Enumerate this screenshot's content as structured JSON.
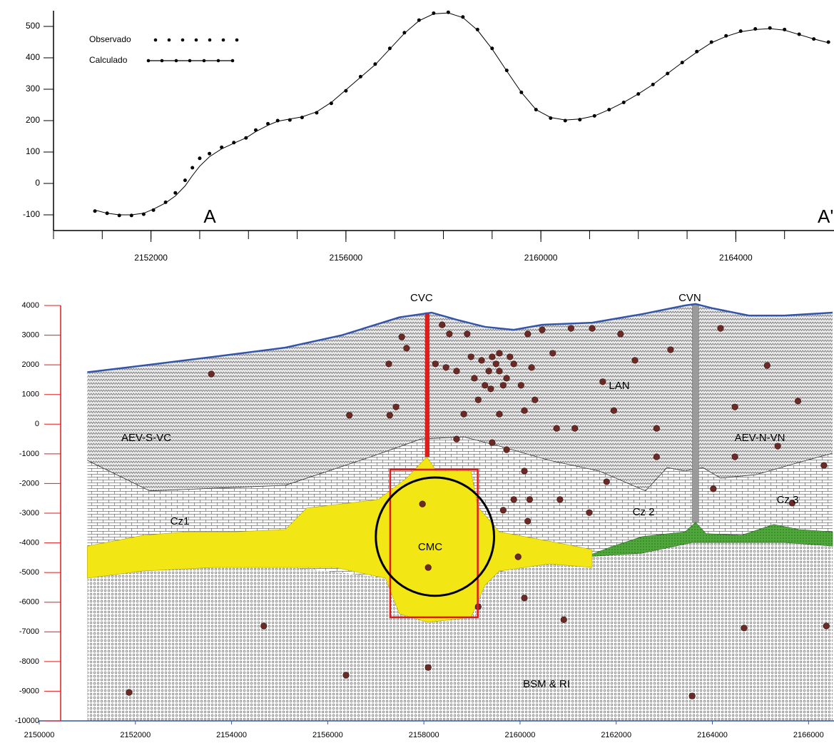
{
  "chart_data": [
    {
      "type": "line",
      "x": [
        2150850,
        2151100,
        2151350,
        2151600,
        2151850,
        2152050,
        2152300,
        2152500,
        2152700,
        2152850,
        2153000,
        2153200,
        2153450,
        2153700,
        2153950,
        2154150,
        2154400,
        2154600,
        2154850,
        2155100,
        2155400,
        2155700,
        2156000,
        2156300,
        2156600,
        2156900,
        2157200,
        2157500,
        2157800,
        2158100,
        2158400,
        2158700,
        2159000,
        2159300,
        2159600,
        2159900,
        2160200,
        2160500,
        2160800,
        2161100,
        2161400,
        2161700,
        2162000,
        2162300,
        2162600,
        2162900,
        2163200,
        2163500,
        2163800,
        2164100,
        2164400,
        2164700,
        2165000,
        2165300,
        2165600,
        2165900
      ],
      "series": [
        {
          "name": "Observado",
          "color": "#000000",
          "style": "dots",
          "values": [
            -88,
            -95,
            -102,
            -102,
            -98,
            -85,
            -60,
            -30,
            10,
            50,
            80,
            95,
            115,
            130,
            145,
            170,
            190,
            200,
            202,
            210,
            225,
            255,
            295,
            340,
            380,
            430,
            480,
            520,
            542,
            545,
            530,
            490,
            430,
            360,
            290,
            235,
            208,
            200,
            203,
            215,
            235,
            258,
            285,
            315,
            350,
            385,
            420,
            450,
            470,
            485,
            492,
            495,
            490,
            475,
            460,
            450
          ]
        },
        {
          "name": "Calculado",
          "color": "#000000",
          "style": "line",
          "values": [
            -85,
            -95,
            -100,
            -100,
            -95,
            -82,
            -62,
            -40,
            -8,
            25,
            55,
            85,
            110,
            128,
            145,
            165,
            185,
            198,
            205,
            212,
            228,
            258,
            298,
            338,
            378,
            428,
            478,
            518,
            540,
            543,
            528,
            488,
            428,
            358,
            290,
            235,
            210,
            202,
            205,
            215,
            235,
            258,
            285,
            315,
            350,
            385,
            418,
            448,
            468,
            483,
            490,
            493,
            488,
            474,
            460,
            448
          ]
        }
      ],
      "xlim": [
        2150000,
        2166000
      ],
      "ylim": [
        -150,
        550
      ],
      "xticks": [
        2152000,
        2156000,
        2160000,
        2164000
      ],
      "xticks_minor": [
        2150000,
        2151000,
        2152000,
        2153000,
        2154000,
        2155000,
        2156000,
        2157000,
        2158000,
        2159000,
        2160000,
        2161000,
        2162000,
        2163000,
        2164000,
        2165000
      ],
      "yticks": [
        -100,
        0,
        100,
        200,
        300,
        400,
        500
      ],
      "annotations": [
        "A",
        "A'"
      ]
    },
    {
      "type": "section",
      "xlim": [
        2150000,
        2166500
      ],
      "ylim": [
        -10000,
        4000
      ],
      "xticks": [
        2150000,
        2152000,
        2154000,
        2156000,
        2158000,
        2160000,
        2162000,
        2164000,
        2166000
      ],
      "yticks": [
        4000,
        3000,
        2000,
        1000,
        0,
        -1000,
        -2000,
        -3000,
        -4000,
        -5000,
        -6000,
        -7000,
        -8000,
        -9000,
        -10000
      ],
      "topography": {
        "color": "#3355aa",
        "x": [
          2151000,
          2151780,
          2153630,
          2155120,
          2156300,
          2157490,
          2158160,
          2158680,
          2159270,
          2159870,
          2160460,
          2161500,
          2162540,
          2163430,
          2163650,
          2164020,
          2164760,
          2165500,
          2166500
        ],
        "y": [
          1750,
          1900,
          2270,
          2580,
          3000,
          3600,
          3760,
          3520,
          3280,
          3180,
          3350,
          3420,
          3710,
          4000,
          4050,
          3900,
          3660,
          3660,
          3760
        ]
      },
      "aev_base": {
        "x": [
          2151000,
          2152300,
          2155120,
          2156900,
          2157940,
          2158830,
          2159570,
          2160610,
          2161650,
          2162610,
          2163060,
          2163430,
          2163800,
          2164170,
          2164910,
          2165800,
          2166500
        ],
        "y": [
          -1220,
          -2250,
          -2060,
          -1100,
          -500,
          -430,
          -740,
          -1220,
          -1580,
          -2250,
          -1460,
          -1580,
          -1460,
          -1820,
          -1700,
          -1290,
          -980
        ]
      },
      "basement_top": {
        "x": [
          2151000,
          2153630,
          2156010,
          2157200,
          2159270,
          2161350,
          2162540,
          2163580,
          2165500,
          2166500
        ],
        "y": [
          -4710,
          -4590,
          -4950,
          -5190,
          -5070,
          -4470,
          -4350,
          -3990,
          -3990,
          -4110
        ]
      },
      "cmc_body": {
        "color": "#f2e614",
        "x": [
          2151000,
          2152150,
          2153040,
          2154080,
          2155120,
          2155560,
          2157050,
          2157640,
          2158060,
          2158260,
          2158980,
          2159120,
          2159570,
          2160760,
          2161500,
          2161500,
          2160610,
          2159570,
          2159270,
          2158980,
          2158090,
          2157490,
          2157200,
          2156160,
          2153630,
          2152150,
          2151000
        ],
        "y": [
          -4110,
          -3750,
          -3630,
          -3630,
          -3550,
          -2830,
          -2540,
          -1820,
          -1100,
          -1580,
          -1580,
          -2780,
          -3630,
          -3990,
          -4230,
          -4830,
          -4710,
          -4950,
          -5430,
          -6510,
          -6680,
          -6390,
          -5190,
          -4830,
          -4830,
          -4950,
          -5190
        ]
      },
      "green_body": {
        "color": "#4fa83a",
        "x": [
          2161350,
          2161940,
          2162540,
          2163430,
          2163650,
          2163870,
          2164610,
          2165280,
          2165800,
          2166500,
          2166500,
          2165500,
          2163580,
          2162540
        ],
        "y": [
          -4470,
          -4110,
          -3790,
          -3630,
          -3310,
          -3690,
          -3740,
          -3380,
          -3550,
          -3630,
          -4110,
          -3990,
          -3990,
          -4350
        ]
      },
      "conduits": [
        {
          "label": "CVC",
          "color": "#e21b1b",
          "x": 2158070,
          "top": 3760,
          "bottom": -1100
        },
        {
          "label": "CVN",
          "color": "#9a9a9a",
          "x": 2163650,
          "top": 4050,
          "bottom": -3300
        }
      ],
      "box": {
        "color": "#e21b1b",
        "x": [
          2157300,
          2159120
        ],
        "y": [
          -6510,
          -1530
        ]
      },
      "circle": {
        "color": "#000000",
        "x": 2158230,
        "y": -3790,
        "radius": 1230
      },
      "earthquakes": {
        "color": "#6b2a25",
        "x": [
          2153580,
          2156450,
          2157290,
          2157540,
          2157640,
          2157270,
          2157420,
          2157970,
          2158090,
          2158090,
          2158680,
          2158380,
          2158530,
          2158240,
          2158460,
          2158680,
          2158900,
          2158980,
          2159050,
          2159130,
          2158830,
          2159270,
          2159420,
          2159570,
          2159720,
          2159870,
          2160020,
          2160160,
          2160240,
          2160310,
          2160090,
          2159570,
          2159420,
          2159720,
          2160090,
          2159870,
          2160160,
          2159650,
          2160200,
          2160460,
          2160680,
          2160760,
          2161060,
          2161140,
          2161500,
          2161720,
          2161950,
          2162090,
          2162390,
          2162840,
          2163130,
          2164170,
          2164470,
          2165140,
          2165780,
          2165360,
          2164470,
          2164020,
          2162840,
          2161800,
          2160830,
          2161440,
          2159130,
          2160090,
          2159960,
          2160910,
          2154670,
          2156380,
          2151870,
          2163580,
          2164660,
          2166370,
          2165660,
          2166320,
          2159200,
          2159350,
          2159500,
          2159650,
          2159790,
          2159570,
          2159390
        ],
        "y": [
          1690,
          300,
          300,
          2940,
          2560,
          2030,
          580,
          -2690,
          -4830,
          -8200,
          -500,
          3350,
          3040,
          2030,
          1910,
          1790,
          3040,
          2270,
          1550,
          820,
          340,
          1310,
          2270,
          1790,
          1550,
          2030,
          1310,
          3040,
          1910,
          820,
          460,
          340,
          -620,
          -860,
          -1580,
          -2540,
          -3270,
          -2900,
          -2540,
          3180,
          2390,
          -140,
          3230,
          -140,
          3230,
          1430,
          460,
          3040,
          2150,
          -140,
          2510,
          3230,
          580,
          1980,
          780,
          -740,
          -1100,
          -2180,
          -1100,
          -1940,
          -2540,
          -2980,
          -6150,
          -5860,
          -4470,
          -6590,
          -6800,
          -8460,
          -9040,
          -9160,
          -6870,
          -6800,
          -2660,
          -1390,
          2150,
          1790,
          2030,
          1310,
          2270,
          2390,
          1190
        ]
      },
      "unit_labels": [
        "LAN",
        "AEV-S-VC",
        "AEV-N-VN",
        "Cz1",
        "Cz 2",
        "Cz 3",
        "CMC",
        "BSM & RI"
      ]
    }
  ]
}
